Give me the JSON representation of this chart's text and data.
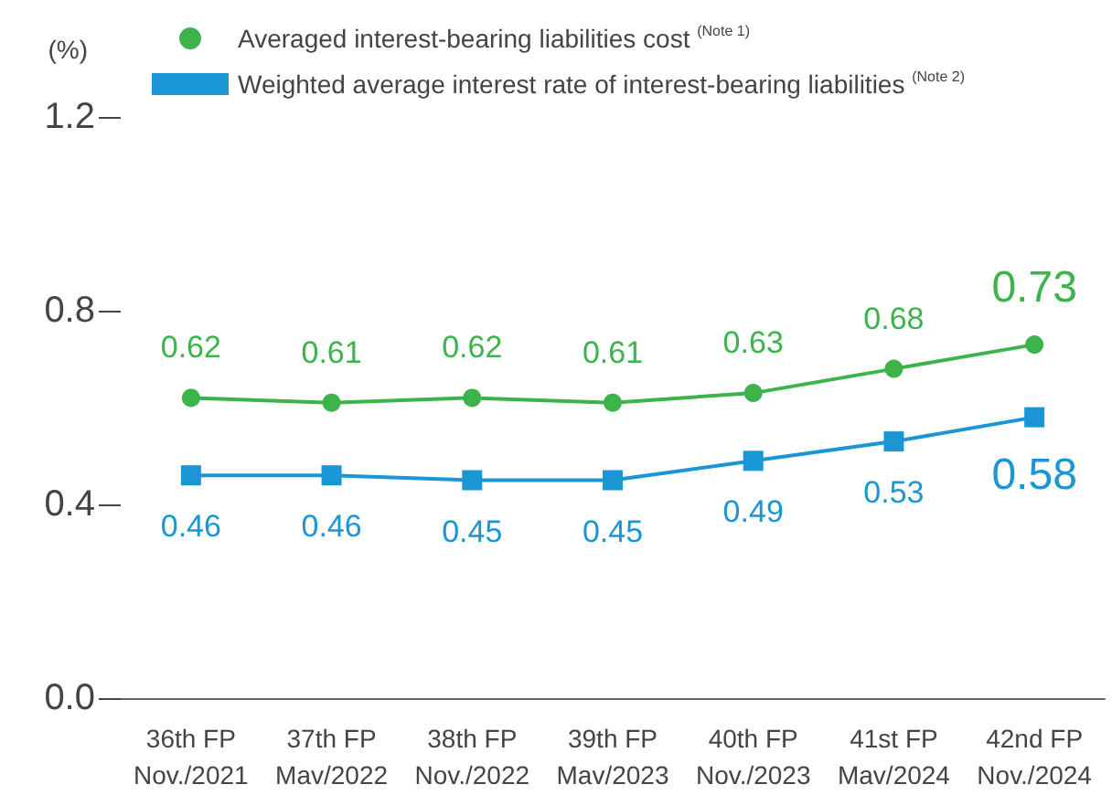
{
  "chart_data": {
    "type": "line",
    "ylabel": "(%)",
    "categories": [
      "36th FP\nNov./2021",
      "37th FP\nMav/2022",
      "38th FP\nNov./2022",
      "39th FP\nMav/2023",
      "40th FP\nNov./2023",
      "41st FP\nMav/2024",
      "42nd FP\nNov./2024"
    ],
    "series": [
      {
        "name": "Averaged interest-bearing liabilities cost $^{(Note 1)}$",
        "color": "#3cb44b",
        "marker": "circle",
        "values": [
          0.62,
          0.61,
          0.62,
          0.61,
          0.63,
          0.68,
          0.73
        ]
      },
      {
        "name": "Weighted average interest rate of interest-bearing liabilities $^{(Note 2)}$",
        "color": "#1a96d4",
        "marker": "square",
        "values": [
          0.46,
          0.46,
          0.45,
          0.45,
          0.49,
          0.53,
          0.58
        ]
      }
    ],
    "ylim": [
      0,
      1.2
    ],
    "yticks": [
      {
        "value": 0,
        "label": "0.0"
      },
      {
        "value": 0.4,
        "label": "0.4"
      },
      {
        "value": 0.8,
        "label": "0.8"
      },
      {
        "value": 1.2,
        "label": "1.2"
      }
    ],
    "grid": false,
    "legend": "top",
    "data_labels": true
  }
}
